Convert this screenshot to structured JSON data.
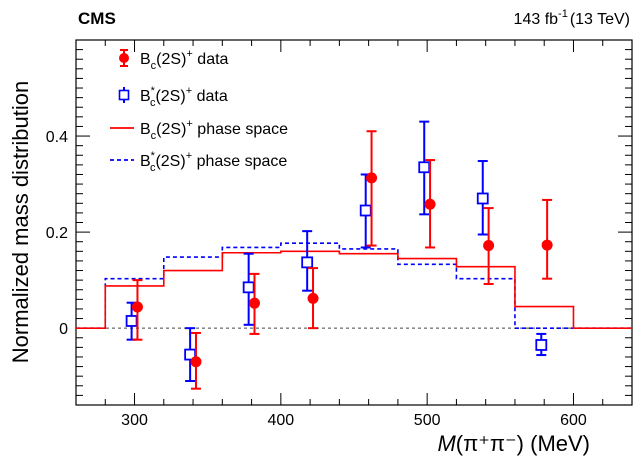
{
  "header": {
    "experiment": "CMS",
    "lumi_value": "143 fb",
    "lumi_exp": "-1",
    "lumi_energy": "(13 TeV)"
  },
  "chart_data": {
    "type": "scatter",
    "xlabel": {
      "var": "M",
      "rest": "(π⁺π⁻) (MeV)"
    },
    "ylabel": "Normalized mass distribution",
    "xlim": [
      260,
      640
    ],
    "ylim": [
      -0.16,
      0.6
    ],
    "xticks": [
      300,
      400,
      500,
      600
    ],
    "yticks": [
      0,
      0.2,
      0.4
    ],
    "ytick_labels": [
      "0",
      "0.2",
      "0.4"
    ],
    "grid": false,
    "legend_placement": "top-left",
    "colors": {
      "red": "#ff0000",
      "blue": "#0000ff"
    },
    "legend": [
      {
        "sub": "c",
        "star": false,
        "suffix": " data",
        "style": "red-dot"
      },
      {
        "sub": "c",
        "star": true,
        "suffix": " data",
        "style": "blue-square"
      },
      {
        "sub": "c",
        "star": false,
        "suffix": " phase space",
        "style": "red-line"
      },
      {
        "sub": "c",
        "star": true,
        "suffix": " phase space",
        "style": "blue-dashed"
      }
    ],
    "series": [
      {
        "name": "Bc(2S)+ data",
        "points": [
          {
            "x": 302,
            "y": 0.044,
            "lo": -0.024,
            "hi": 0.1
          },
          {
            "x": 342,
            "y": -0.07,
            "lo": -0.126,
            "hi": -0.01
          },
          {
            "x": 382,
            "y": 0.052,
            "lo": -0.012,
            "hi": 0.113
          },
          {
            "x": 422,
            "y": 0.062,
            "lo": 0.0,
            "hi": 0.125
          },
          {
            "x": 462,
            "y": 0.313,
            "lo": 0.172,
            "hi": 0.41
          },
          {
            "x": 502,
            "y": 0.258,
            "lo": 0.168,
            "hi": 0.35
          },
          {
            "x": 542,
            "y": 0.172,
            "lo": 0.092,
            "hi": 0.25
          },
          {
            "x": 582,
            "y": 0.173,
            "lo": 0.103,
            "hi": 0.267
          }
        ]
      },
      {
        "name": "Bc*(2S)+ data",
        "points": [
          {
            "x": 298,
            "y": 0.015,
            "lo": -0.024,
            "hi": 0.053
          },
          {
            "x": 338,
            "y": -0.055,
            "lo": -0.11,
            "hi": 0.0
          },
          {
            "x": 378,
            "y": 0.085,
            "lo": 0.007,
            "hi": 0.155
          },
          {
            "x": 418,
            "y": 0.137,
            "lo": 0.078,
            "hi": 0.202
          },
          {
            "x": 458,
            "y": 0.245,
            "lo": 0.168,
            "hi": 0.32
          },
          {
            "x": 498,
            "y": 0.335,
            "lo": 0.237,
            "hi": 0.43
          },
          {
            "x": 538,
            "y": 0.27,
            "lo": 0.195,
            "hi": 0.348
          },
          {
            "x": 578,
            "y": -0.035,
            "lo": -0.056,
            "hi": -0.012
          }
        ]
      },
      {
        "name": "Bc(2S)+ phase space",
        "edges": [
          260,
          280,
          320,
          360,
          400,
          440,
          480,
          520,
          560,
          600,
          640
        ],
        "values": [
          0,
          0.088,
          0.12,
          0.157,
          0.16,
          0.155,
          0.145,
          0.128,
          0.045,
          0,
          0
        ]
      },
      {
        "name": "Bc*(2S)+ phase space",
        "edges": [
          260,
          280,
          320,
          360,
          400,
          440,
          480,
          520,
          560,
          600,
          640
        ],
        "values": [
          0,
          0.103,
          0.148,
          0.168,
          0.177,
          0.165,
          0.133,
          0.103,
          0.0,
          0,
          0
        ]
      }
    ]
  }
}
